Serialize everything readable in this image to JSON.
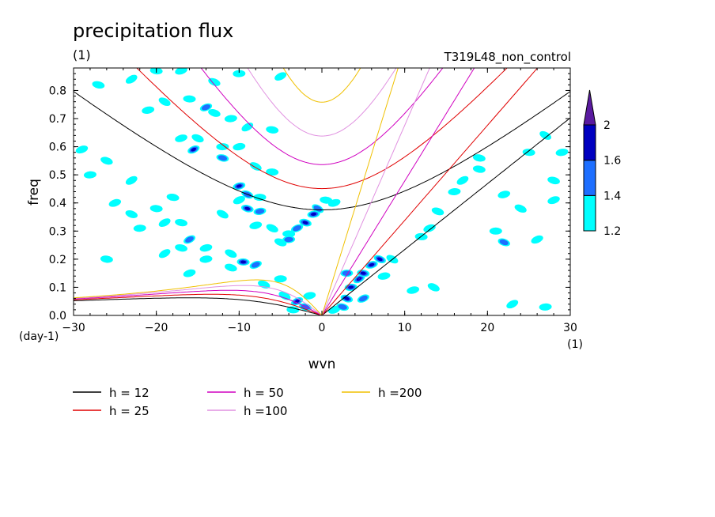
{
  "chart_data": {
    "type": "heatmap",
    "title": "precipitation flux",
    "subtitle": "(1)",
    "run_label": "T319L48_non_control",
    "xlabel": "wvn",
    "ylabel": "freq",
    "y_unit": "(day-1)",
    "x_unit": "(1)",
    "xlim": [
      -30,
      30
    ],
    "ylim": [
      0,
      0.88
    ],
    "x_ticks": [
      -30,
      -20,
      -10,
      0,
      10,
      20,
      30
    ],
    "x_tick_labels": [
      "−30",
      "−20",
      "−10",
      "0",
      "10",
      "20",
      "30"
    ],
    "y_ticks": [
      0.0,
      0.1,
      0.2,
      0.3,
      0.4,
      0.5,
      0.6,
      0.7,
      0.8
    ],
    "y_tick_labels": [
      "0.0",
      "0.1",
      "0.2",
      "0.3",
      "0.4",
      "0.5",
      "0.6",
      "0.7",
      "0.8"
    ],
    "colorbar": {
      "levels": [
        1.2,
        1.4,
        1.6,
        2
      ],
      "level_labels": [
        "1.2",
        "1.4",
        "1.6",
        "2"
      ],
      "colors": [
        "#00ffff",
        "#1e6fff",
        "#0000c0",
        "#5a1aa0"
      ],
      "extend": "max"
    },
    "series": [
      {
        "name": "h = 12",
        "h": 12,
        "color": "#000000"
      },
      {
        "name": "h = 25",
        "h": 25,
        "color": "#e00000"
      },
      {
        "name": "h = 50",
        "h": 50,
        "color": "#d000c0"
      },
      {
        "name": "h =100",
        "h": 100,
        "color": "#e090e0"
      },
      {
        "name": "h =200",
        "h": 200,
        "color": "#f0c000"
      }
    ],
    "blobs": [
      {
        "x": -23,
        "y": 0.84,
        "level": 1
      },
      {
        "x": -20,
        "y": 0.87,
        "level": 1
      },
      {
        "x": -17,
        "y": 0.87,
        "level": 1
      },
      {
        "x": -13,
        "y": 0.83,
        "level": 1
      },
      {
        "x": -10,
        "y": 0.86,
        "level": 1
      },
      {
        "x": -5,
        "y": 0.85,
        "level": 1
      },
      {
        "x": -27,
        "y": 0.82,
        "level": 1
      },
      {
        "x": -21,
        "y": 0.73,
        "level": 1
      },
      {
        "x": -19,
        "y": 0.76,
        "level": 1
      },
      {
        "x": -16,
        "y": 0.77,
        "level": 1
      },
      {
        "x": -14,
        "y": 0.74,
        "level": 2
      },
      {
        "x": -13,
        "y": 0.72,
        "level": 1
      },
      {
        "x": -11,
        "y": 0.7,
        "level": 1
      },
      {
        "x": -9,
        "y": 0.67,
        "level": 1
      },
      {
        "x": -6,
        "y": 0.66,
        "level": 1
      },
      {
        "x": -17,
        "y": 0.63,
        "level": 1
      },
      {
        "x": -15,
        "y": 0.63,
        "level": 1
      },
      {
        "x": -12,
        "y": 0.6,
        "level": 1
      },
      {
        "x": -15.5,
        "y": 0.59,
        "level": 3
      },
      {
        "x": -12,
        "y": 0.56,
        "level": 2
      },
      {
        "x": -10,
        "y": 0.6,
        "level": 1
      },
      {
        "x": -8,
        "y": 0.53,
        "level": 1
      },
      {
        "x": -6,
        "y": 0.51,
        "level": 1
      },
      {
        "x": -29,
        "y": 0.59,
        "level": 1
      },
      {
        "x": -26,
        "y": 0.55,
        "level": 1
      },
      {
        "x": -28,
        "y": 0.5,
        "level": 1
      },
      {
        "x": -23,
        "y": 0.48,
        "level": 1
      },
      {
        "x": -18,
        "y": 0.42,
        "level": 1
      },
      {
        "x": -10,
        "y": 0.46,
        "level": 3
      },
      {
        "x": -9,
        "y": 0.43,
        "level": 2
      },
      {
        "x": -7.5,
        "y": 0.42,
        "level": 1
      },
      {
        "x": -10,
        "y": 0.41,
        "level": 1
      },
      {
        "x": -9,
        "y": 0.38,
        "level": 3
      },
      {
        "x": -7.5,
        "y": 0.37,
        "level": 2
      },
      {
        "x": -12,
        "y": 0.36,
        "level": 1
      },
      {
        "x": -20,
        "y": 0.38,
        "level": 1
      },
      {
        "x": -25,
        "y": 0.4,
        "level": 1
      },
      {
        "x": -23,
        "y": 0.36,
        "level": 1
      },
      {
        "x": -22,
        "y": 0.31,
        "level": 1
      },
      {
        "x": -19,
        "y": 0.33,
        "level": 1
      },
      {
        "x": -17,
        "y": 0.33,
        "level": 1
      },
      {
        "x": -8,
        "y": 0.32,
        "level": 1
      },
      {
        "x": -6,
        "y": 0.31,
        "level": 1
      },
      {
        "x": -4,
        "y": 0.29,
        "level": 1
      },
      {
        "x": -3,
        "y": 0.31,
        "level": 2
      },
      {
        "x": -2,
        "y": 0.33,
        "level": 3
      },
      {
        "x": -1,
        "y": 0.36,
        "level": 3
      },
      {
        "x": -0.5,
        "y": 0.38,
        "level": 2
      },
      {
        "x": 0.5,
        "y": 0.41,
        "level": 1
      },
      {
        "x": 1.5,
        "y": 0.4,
        "level": 1
      },
      {
        "x": -5,
        "y": 0.26,
        "level": 1
      },
      {
        "x": -4,
        "y": 0.27,
        "level": 2
      },
      {
        "x": -16,
        "y": 0.27,
        "level": 2
      },
      {
        "x": -17,
        "y": 0.24,
        "level": 1
      },
      {
        "x": -14,
        "y": 0.24,
        "level": 1
      },
      {
        "x": -11,
        "y": 0.22,
        "level": 1
      },
      {
        "x": -9.5,
        "y": 0.19,
        "level": 3
      },
      {
        "x": -8,
        "y": 0.18,
        "level": 2
      },
      {
        "x": -11,
        "y": 0.17,
        "level": 1
      },
      {
        "x": -14,
        "y": 0.2,
        "level": 1
      },
      {
        "x": -19,
        "y": 0.22,
        "level": 1
      },
      {
        "x": -26,
        "y": 0.2,
        "level": 1
      },
      {
        "x": -16,
        "y": 0.15,
        "level": 1
      },
      {
        "x": -7,
        "y": 0.11,
        "level": 1
      },
      {
        "x": -5,
        "y": 0.13,
        "level": 1
      },
      {
        "x": -3,
        "y": 0.05,
        "level": 3
      },
      {
        "x": -2,
        "y": 0.03,
        "level": 2
      },
      {
        "x": -1.5,
        "y": 0.07,
        "level": 1
      },
      {
        "x": -4.5,
        "y": 0.07,
        "level": 1
      },
      {
        "x": -3.5,
        "y": 0.02,
        "level": 1
      },
      {
        "x": 1.5,
        "y": 0.02,
        "level": 1
      },
      {
        "x": 3,
        "y": 0.06,
        "level": 3
      },
      {
        "x": 3.5,
        "y": 0.1,
        "level": 3
      },
      {
        "x": 4.5,
        "y": 0.13,
        "level": 4
      },
      {
        "x": 5,
        "y": 0.15,
        "level": 3
      },
      {
        "x": 6,
        "y": 0.18,
        "level": 3
      },
      {
        "x": 7,
        "y": 0.2,
        "level": 3
      },
      {
        "x": 3,
        "y": 0.15,
        "level": 2
      },
      {
        "x": 5,
        "y": 0.06,
        "level": 2
      },
      {
        "x": 2.5,
        "y": 0.03,
        "level": 2
      },
      {
        "x": 7.5,
        "y": 0.14,
        "level": 1
      },
      {
        "x": 8.5,
        "y": 0.2,
        "level": 1
      },
      {
        "x": 12,
        "y": 0.28,
        "level": 1
      },
      {
        "x": 13,
        "y": 0.31,
        "level": 1
      },
      {
        "x": 14,
        "y": 0.37,
        "level": 1
      },
      {
        "x": 16,
        "y": 0.44,
        "level": 1
      },
      {
        "x": 17,
        "y": 0.48,
        "level": 1
      },
      {
        "x": 19,
        "y": 0.52,
        "level": 1
      },
      {
        "x": 22,
        "y": 0.43,
        "level": 1
      },
      {
        "x": 24,
        "y": 0.38,
        "level": 1
      },
      {
        "x": 21,
        "y": 0.3,
        "level": 1
      },
      {
        "x": 26,
        "y": 0.27,
        "level": 1
      },
      {
        "x": 28,
        "y": 0.48,
        "level": 1
      },
      {
        "x": 29,
        "y": 0.58,
        "level": 1
      },
      {
        "x": 27,
        "y": 0.64,
        "level": 1
      },
      {
        "x": 25,
        "y": 0.58,
        "level": 1
      },
      {
        "x": 28,
        "y": 0.41,
        "level": 1
      },
      {
        "x": 22,
        "y": 0.26,
        "level": 2
      },
      {
        "x": 27,
        "y": 0.03,
        "level": 1
      },
      {
        "x": 23,
        "y": 0.04,
        "level": 1
      },
      {
        "x": 19,
        "y": 0.56,
        "level": 1
      },
      {
        "x": 11,
        "y": 0.09,
        "level": 1
      },
      {
        "x": 13.5,
        "y": 0.1,
        "level": 1
      }
    ]
  }
}
